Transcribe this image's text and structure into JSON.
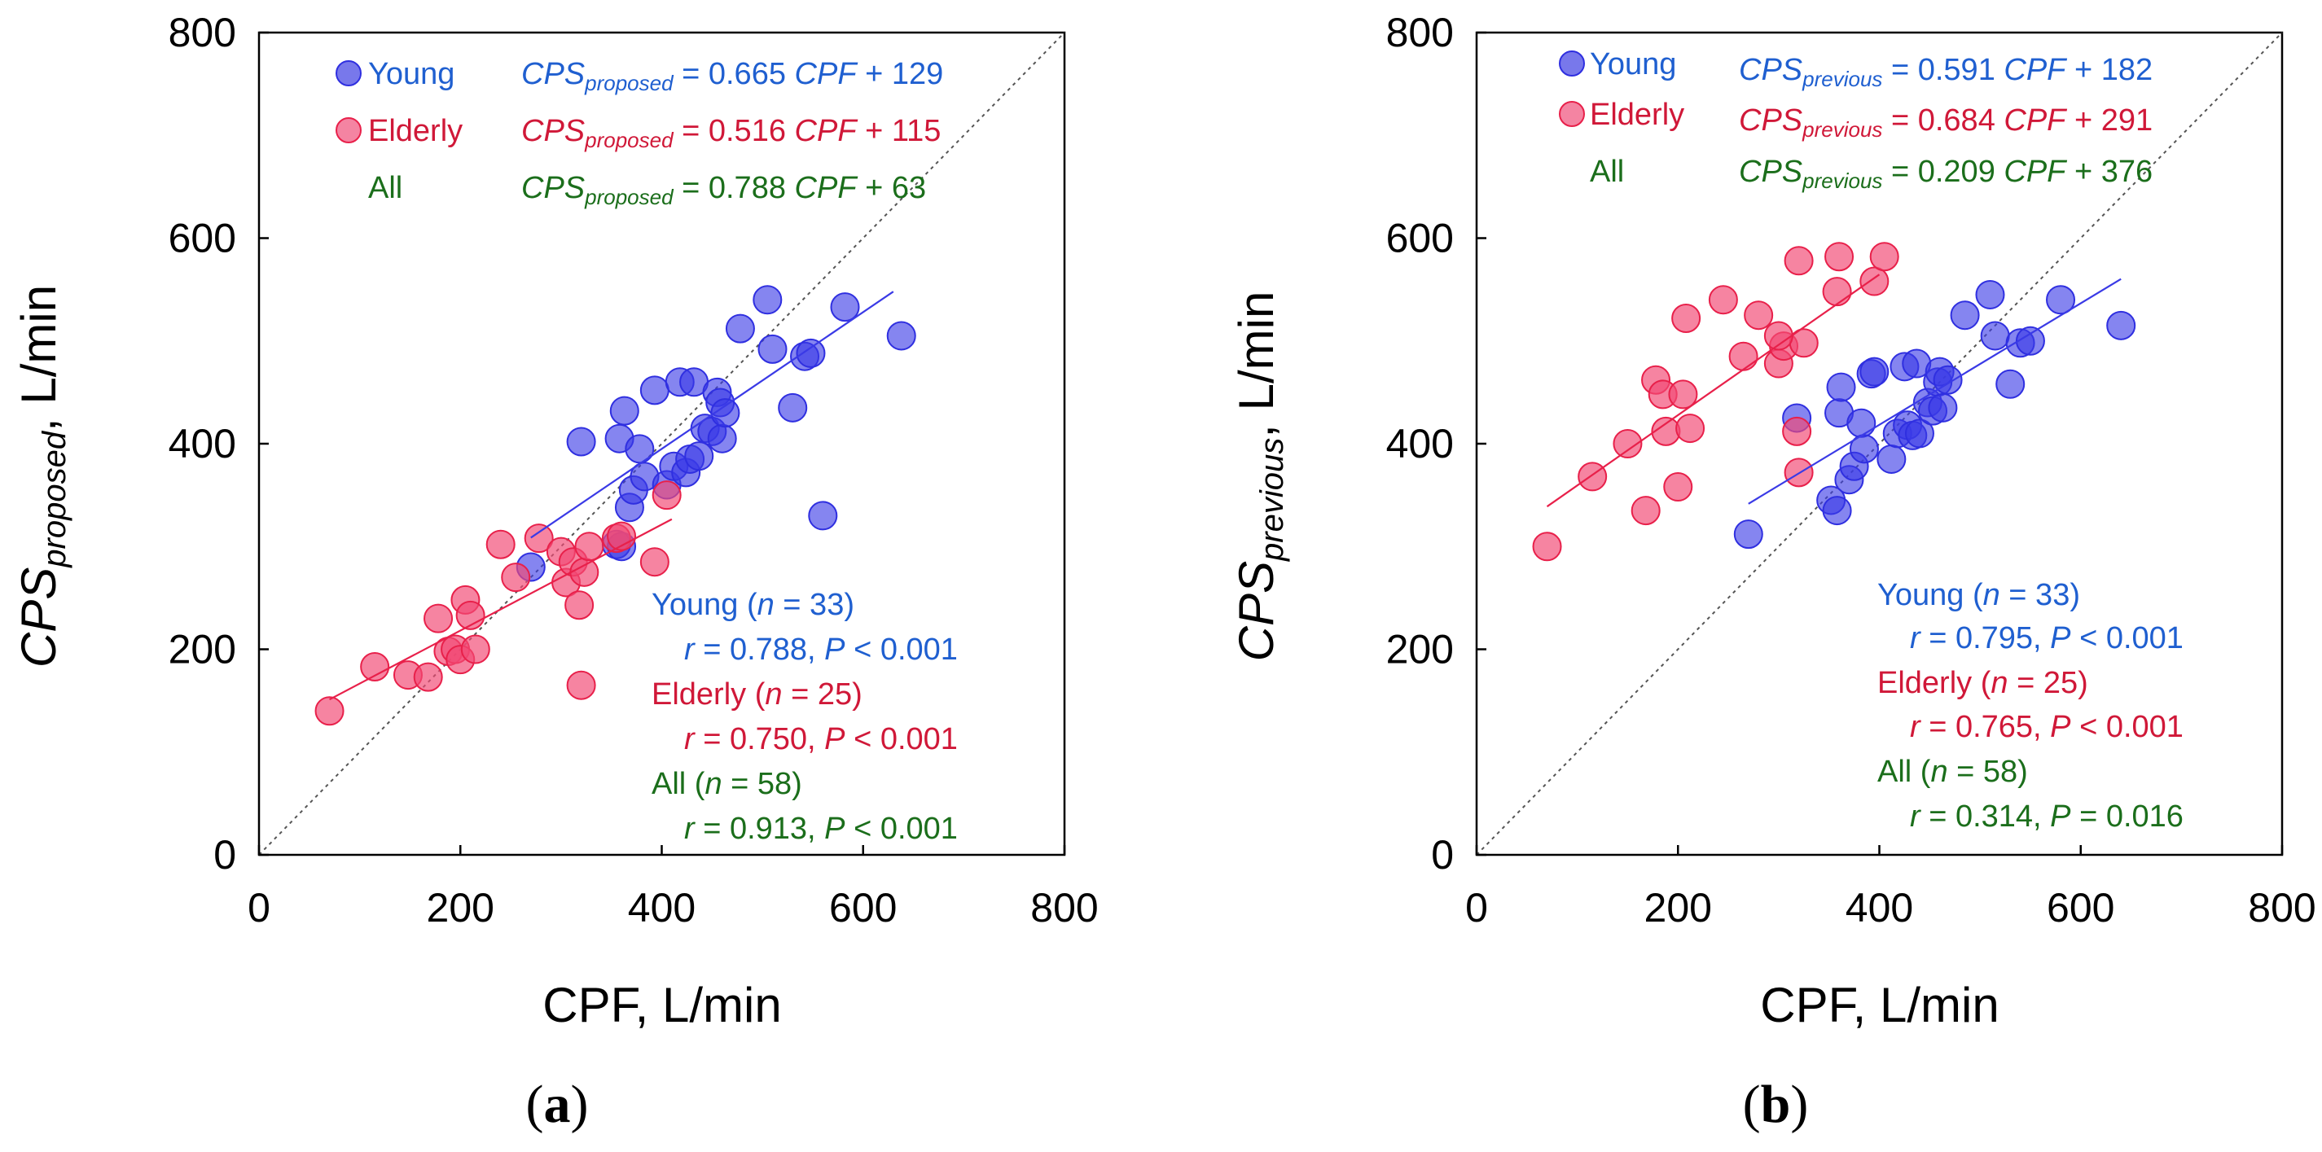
{
  "colors": {
    "young": "#2f2fe0",
    "elderly": "#e8204a",
    "all": "#1b6e1b",
    "young_text": "#1f5fd0",
    "elderly_text": "#d01838",
    "all_text": "#1b6e1b"
  },
  "chart_data": [
    {
      "type": "scatter",
      "panel_label": "a",
      "xlabel": "CPF, L/min",
      "ylabel_main": "CPS",
      "ylabel_sub": "proposed",
      "ylabel_tail": ",  L/min",
      "xlim": [
        0,
        800
      ],
      "ylim": [
        0,
        800
      ],
      "xticks": [
        "0",
        "200",
        "400",
        "600",
        "800"
      ],
      "yticks": [
        "0",
        "200",
        "400",
        "600",
        "800"
      ],
      "identity_line": true,
      "legend": {
        "young": "Young",
        "elderly": "Elderly",
        "all": "All"
      },
      "equations": [
        {
          "group": "young",
          "lhs": "CPS",
          "sub": "proposed",
          "eq": " = 0.665 ",
          "var": "CPF",
          "tail": " + 129"
        },
        {
          "group": "elderly",
          "lhs": "CPS",
          "sub": "proposed",
          "eq": " = 0.516 ",
          "var": "CPF",
          "tail": " + 115"
        },
        {
          "group": "all",
          "lhs": "CPS",
          "sub": "proposed",
          "eq": " = 0.788 ",
          "var": "CPF",
          "tail": " + 63"
        }
      ],
      "stats": [
        {
          "group": "young",
          "head": "Young (",
          "n": "n",
          "nval": " = 33)",
          "r": "r",
          "rval": " =  0.788,  ",
          "p": "P",
          "pval": " < 0.001"
        },
        {
          "group": "elderly",
          "head": "Elderly  (",
          "n": "n",
          "nval": " = 25)",
          "r": "r",
          "rval": " =  0.750,  ",
          "p": "P",
          "pval": " < 0.001"
        },
        {
          "group": "all",
          "head": "All (",
          "n": "n",
          "nval": " = 58)",
          "r": "r",
          "rval": " =  0.913,  ",
          "p": "P",
          "pval": " < 0.001"
        }
      ],
      "fits": {
        "young": {
          "slope": 0.665,
          "intercept": 129,
          "xrange": [
            270,
            630
          ]
        },
        "elderly": {
          "slope": 0.516,
          "intercept": 115,
          "xrange": [
            70,
            410
          ]
        }
      },
      "series": [
        {
          "name": "Young",
          "group": "young",
          "points": [
            [
              270,
              280
            ],
            [
              320,
              402
            ],
            [
              355,
              302
            ],
            [
              358,
              405
            ],
            [
              360,
              300
            ],
            [
              363,
              432
            ],
            [
              368,
              338
            ],
            [
              372,
              355
            ],
            [
              378,
              395
            ],
            [
              383,
              368
            ],
            [
              393,
              452
            ],
            [
              405,
              360
            ],
            [
              412,
              378
            ],
            [
              418,
              460
            ],
            [
              424,
              372
            ],
            [
              428,
              385
            ],
            [
              432,
              460
            ],
            [
              437,
              388
            ],
            [
              443,
              415
            ],
            [
              450,
              412
            ],
            [
              455,
              450
            ],
            [
              458,
              440
            ],
            [
              460,
              405
            ],
            [
              463,
              430
            ],
            [
              478,
              512
            ],
            [
              505,
              540
            ],
            [
              510,
              492
            ],
            [
              530,
              435
            ],
            [
              542,
              485
            ],
            [
              548,
              488
            ],
            [
              560,
              330
            ],
            [
              582,
              533
            ],
            [
              638,
              505
            ]
          ]
        },
        {
          "name": "Elderly",
          "group": "elderly",
          "points": [
            [
              70,
              140
            ],
            [
              115,
              183
            ],
            [
              148,
              175
            ],
            [
              168,
              173
            ],
            [
              178,
              230
            ],
            [
              188,
              198
            ],
            [
              195,
              200
            ],
            [
              200,
              190
            ],
            [
              205,
              248
            ],
            [
              210,
              233
            ],
            [
              215,
              200
            ],
            [
              240,
              302
            ],
            [
              255,
              270
            ],
            [
              278,
              308
            ],
            [
              300,
              295
            ],
            [
              305,
              265
            ],
            [
              312,
              285
            ],
            [
              318,
              243
            ],
            [
              320,
              165
            ],
            [
              323,
              275
            ],
            [
              328,
              300
            ],
            [
              355,
              308
            ],
            [
              393,
              285
            ],
            [
              405,
              350
            ],
            [
              360,
              310
            ]
          ]
        }
      ]
    },
    {
      "type": "scatter",
      "panel_label": "b",
      "xlabel": "CPF, L/min",
      "ylabel_main": "CPS",
      "ylabel_sub": "previous",
      "ylabel_tail": ",  L/min",
      "xlim": [
        0,
        800
      ],
      "ylim": [
        0,
        800
      ],
      "xticks": [
        "0",
        "200",
        "400",
        "600",
        "800"
      ],
      "yticks": [
        "0",
        "200",
        "400",
        "600",
        "800"
      ],
      "identity_line": true,
      "legend": {
        "young": "Young",
        "elderly": "Elderly",
        "all": "All"
      },
      "equations": [
        {
          "group": "young",
          "lhs": "CPS",
          "sub": "previous",
          "eq": " = 0.591 ",
          "var": "CPF",
          "tail": " + 182"
        },
        {
          "group": "elderly",
          "lhs": "CPS",
          "sub": "previous",
          "eq": " = 0.684 ",
          "var": "CPF",
          "tail": " + 291"
        },
        {
          "group": "all",
          "lhs": "CPS",
          "sub": "previous",
          "eq": " = 0.209 ",
          "var": "CPF",
          "tail": " + 376"
        }
      ],
      "stats": [
        {
          "group": "young",
          "head": "Young (",
          "n": "n",
          "nval": " = 33)",
          "r": "r",
          "rval": " =  0.795,  ",
          "p": "P",
          "pval": " < 0.001"
        },
        {
          "group": "elderly",
          "head": "Elderly (",
          "n": "n",
          "nval": " = 25)",
          "r": "r",
          "rval": " =  0.765,  ",
          "p": "P",
          "pval": " < 0.001"
        },
        {
          "group": "all",
          "head": "All (",
          "n": "n",
          "nval": " = 58)",
          "r": "r",
          "rval": " =  0.314,  ",
          "p": "P",
          "pval": " = 0.016"
        }
      ],
      "fits": {
        "young": {
          "slope": 0.591,
          "intercept": 182,
          "xrange": [
            270,
            640
          ]
        },
        "elderly": {
          "slope": 0.684,
          "intercept": 291,
          "xrange": [
            70,
            400
          ]
        }
      },
      "series": [
        {
          "name": "Young",
          "group": "young",
          "points": [
            [
              270,
              312
            ],
            [
              318,
              425
            ],
            [
              352,
              345
            ],
            [
              358,
              335
            ],
            [
              360,
              430
            ],
            [
              362,
              455
            ],
            [
              370,
              365
            ],
            [
              375,
              378
            ],
            [
              382,
              420
            ],
            [
              385,
              395
            ],
            [
              392,
              468
            ],
            [
              412,
              385
            ],
            [
              418,
              410
            ],
            [
              425,
              475
            ],
            [
              428,
              418
            ],
            [
              433,
              408
            ],
            [
              437,
              478
            ],
            [
              440,
              410
            ],
            [
              448,
              440
            ],
            [
              453,
              432
            ],
            [
              458,
              460
            ],
            [
              460,
              470
            ],
            [
              463,
              435
            ],
            [
              468,
              462
            ],
            [
              485,
              525
            ],
            [
              510,
              545
            ],
            [
              515,
              505
            ],
            [
              530,
              458
            ],
            [
              540,
              498
            ],
            [
              550,
              500
            ],
            [
              580,
              540
            ],
            [
              640,
              515
            ],
            [
              395,
              470
            ]
          ]
        },
        {
          "name": "Elderly",
          "group": "elderly",
          "points": [
            [
              70,
              300
            ],
            [
              115,
              368
            ],
            [
              150,
              400
            ],
            [
              168,
              335
            ],
            [
              178,
              462
            ],
            [
              185,
              448
            ],
            [
              188,
              412
            ],
            [
              200,
              358
            ],
            [
              205,
              448
            ],
            [
              208,
              522
            ],
            [
              212,
              415
            ],
            [
              245,
              540
            ],
            [
              265,
              485
            ],
            [
              280,
              525
            ],
            [
              300,
              478
            ],
            [
              305,
              495
            ],
            [
              320,
              578
            ],
            [
              318,
              412
            ],
            [
              320,
              372
            ],
            [
              325,
              498
            ],
            [
              358,
              548
            ],
            [
              360,
              582
            ],
            [
              395,
              558
            ],
            [
              405,
              582
            ],
            [
              300,
              505
            ]
          ]
        }
      ]
    }
  ]
}
